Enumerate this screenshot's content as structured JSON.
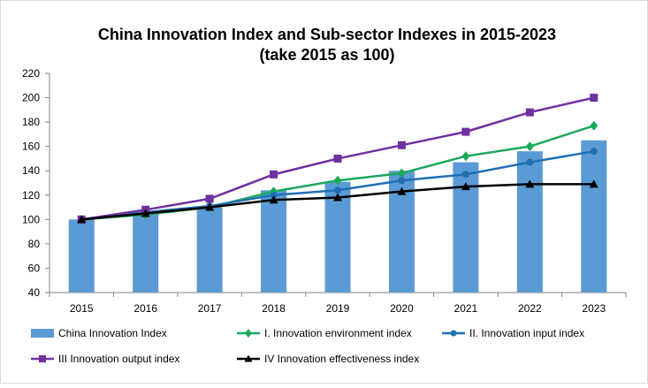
{
  "chart_data": {
    "type": "bar",
    "title_line1": "China Innovation Index and Sub-sector Indexes in 2015-2023",
    "title_line2": "(take 2015 as 100)",
    "categories": [
      "2015",
      "2016",
      "2017",
      "2018",
      "2019",
      "2020",
      "2021",
      "2022",
      "2023"
    ],
    "ylim": [
      40,
      220
    ],
    "yticks": [
      40,
      60,
      80,
      100,
      120,
      140,
      160,
      180,
      200,
      220
    ],
    "grid": false,
    "legend_position": "bottom",
    "series": [
      {
        "name": "China Innovation Index",
        "kind": "bar",
        "color": "#5B9BD5",
        "marker": "rect",
        "values": [
          100,
          105,
          110,
          124,
          131,
          140,
          147,
          156,
          165
        ]
      },
      {
        "name": "I. Innovation environment index",
        "kind": "line",
        "color": "#1BA85C",
        "marker": "diamond",
        "values": [
          100,
          104,
          110,
          123,
          132,
          138,
          152,
          160,
          177
        ]
      },
      {
        "name": "II. Innovation input index",
        "kind": "line",
        "color": "#1F6FB4",
        "marker": "circle",
        "values": [
          100,
          106,
          111,
          120,
          124,
          132,
          137,
          147,
          156
        ]
      },
      {
        "name": "III Innovation output index",
        "kind": "line",
        "color": "#7030A0",
        "marker": "square",
        "values": [
          100,
          108,
          117,
          137,
          150,
          161,
          172,
          188,
          200
        ]
      },
      {
        "name": "IV Innovation effectiveness index",
        "kind": "line",
        "color": "#000000",
        "marker": "triangle",
        "values": [
          100,
          105,
          110,
          116,
          118,
          123,
          127,
          129,
          129
        ]
      }
    ]
  }
}
